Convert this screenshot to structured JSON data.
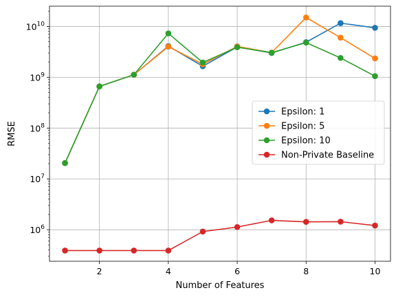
{
  "chart_data": {
    "type": "line",
    "title": "",
    "xlabel": "Number of Features",
    "ylabel": "RMSE",
    "xlim": [
      0.55,
      10.45
    ],
    "ylim": [
      240000,
      25000000000
    ],
    "yscale": "log",
    "grid": true,
    "legend_position": "center-right",
    "x": [
      1,
      2,
      3,
      4,
      5,
      6,
      7,
      8,
      9,
      10
    ],
    "x_ticks": [
      2,
      4,
      6,
      8,
      10
    ],
    "x_tick_labels": [
      "2",
      "4",
      "6",
      "8",
      "10"
    ],
    "y_ticks": [
      1000000,
      10000000,
      100000000,
      1000000000,
      10000000000
    ],
    "y_tick_labels": [
      {
        "base": "10",
        "exp": "6"
      },
      {
        "base": "10",
        "exp": "7"
      },
      {
        "base": "10",
        "exp": "8"
      },
      {
        "base": "10",
        "exp": "9"
      },
      {
        "base": "10",
        "exp": "10"
      }
    ],
    "series": [
      {
        "name": "Epsilon: 1",
        "color": "#1f77b4",
        "values": [
          20500000,
          660000000,
          1120000000,
          4100000000,
          1650000000,
          3950000000,
          3000000000,
          4900000000,
          11600000000,
          9400000000
        ]
      },
      {
        "name": "Epsilon: 5",
        "color": "#ff7f0e",
        "values": [
          20500000,
          660000000,
          1120000000,
          4000000000,
          1800000000,
          4050000000,
          3050000000,
          15000000000,
          6000000000,
          2350000000
        ]
      },
      {
        "name": "Epsilon: 10",
        "color": "#2ca02c",
        "values": [
          20500000,
          660000000,
          1120000000,
          7300000000,
          1950000000,
          3900000000,
          3050000000,
          4800000000,
          2400000000,
          1050000000
        ]
      },
      {
        "name": "Non-Private Baseline",
        "color": "#d62728",
        "values": [
          390000,
          390000,
          390000,
          390000,
          920000,
          1130000,
          1530000,
          1430000,
          1440000,
          1210000
        ]
      }
    ]
  }
}
